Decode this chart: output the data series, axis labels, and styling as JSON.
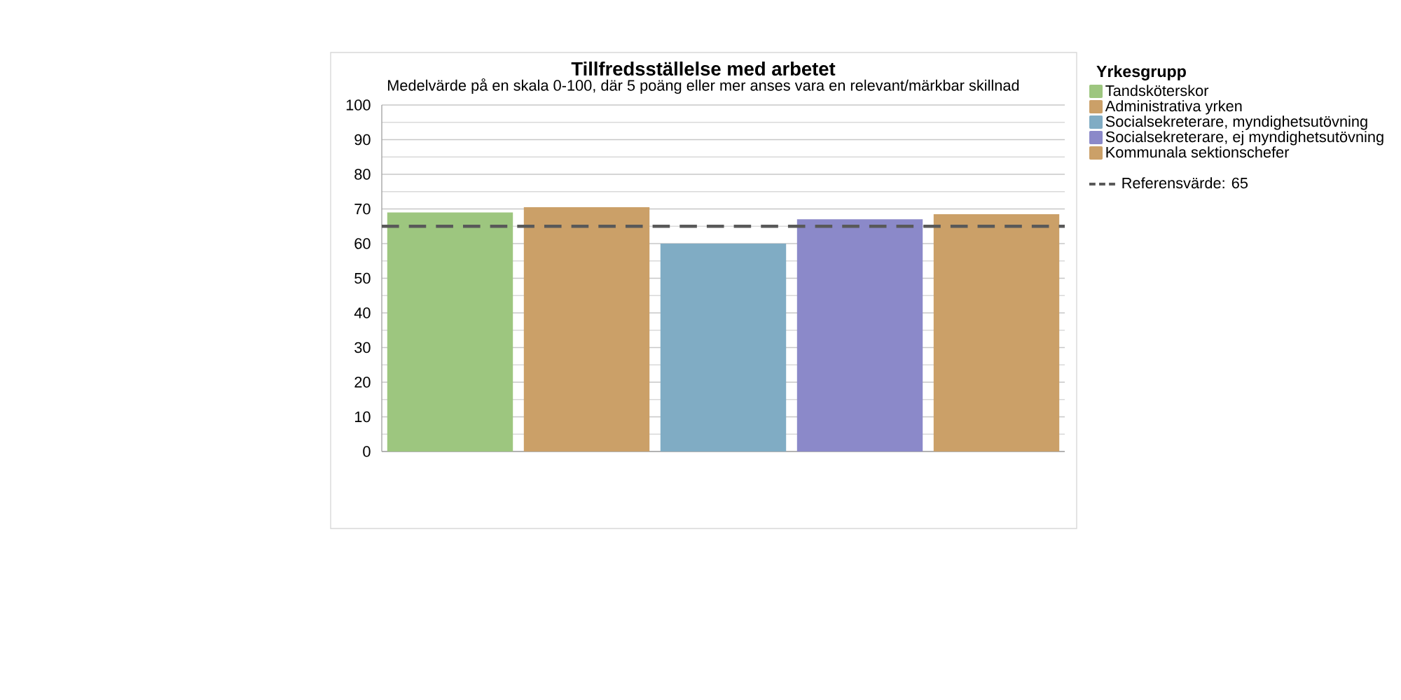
{
  "chart_data": {
    "type": "bar",
    "title": "Tillfredsställelse med arbetet",
    "subtitle": "Medelvärde på en skala 0-100, där 5 poäng eller mer anses vara en relevant/märkbar skillnad",
    "categories": [
      null,
      null,
      null,
      null,
      null
    ],
    "series": [
      {
        "name": "Tandsköterskor",
        "color": "#9dc67f",
        "values": [
          69,
          null,
          null,
          null,
          null
        ]
      },
      {
        "name": "Administrativa yrken",
        "color": "#cba068",
        "values": [
          null,
          70.5,
          null,
          null,
          null
        ]
      },
      {
        "name": "Socialsekreterare, myndighetsutövning",
        "color": "#80acc4",
        "values": [
          null,
          null,
          60,
          null,
          null
        ]
      },
      {
        "name": "Socialsekreterare, ej myndighetsutövning",
        "color": "#8b89c9",
        "values": [
          null,
          null,
          null,
          67,
          null
        ]
      },
      {
        "name": "Kommunala sektionschefer",
        "color": "#cba068",
        "values": [
          null,
          null,
          null,
          null,
          68.5
        ]
      }
    ],
    "legend_title": "Yrkesgrupp",
    "legend": "right",
    "ylim": [
      0,
      100
    ],
    "yticks": [
      0,
      10,
      20,
      30,
      40,
      50,
      60,
      70,
      80,
      90,
      100
    ],
    "grid": "y",
    "ref_lines": [
      {
        "axis": "y",
        "value": 65,
        "label": "Referensvärde: 65",
        "color": "#595959",
        "line_style": "dashed"
      }
    ]
  }
}
